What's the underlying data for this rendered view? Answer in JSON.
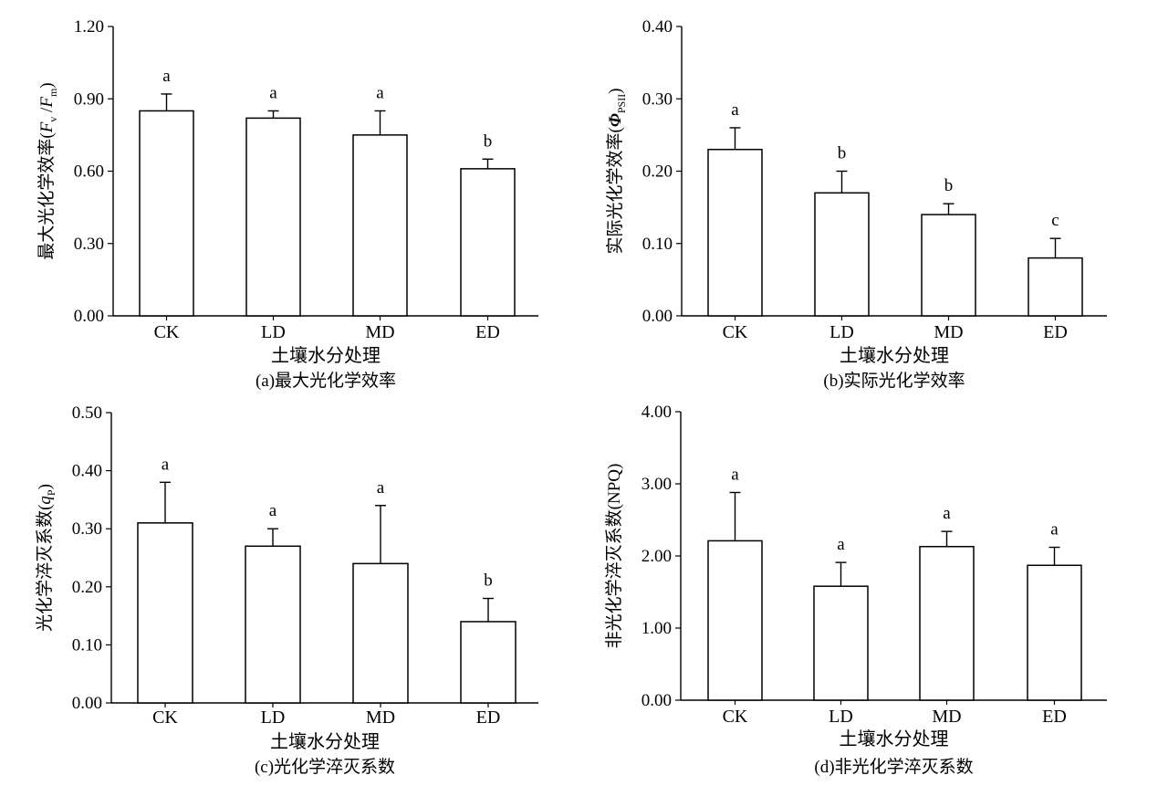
{
  "chart_data": [
    {
      "type": "bar",
      "caption": "(a)最大光化学效率",
      "xlabel": "土壤水分处理",
      "ylabel_parts": [
        {
          "t": "最大光化学效率(",
          "s": "n"
        },
        {
          "t": "F",
          "s": "i"
        },
        {
          "t": "v",
          "s": "sub"
        },
        {
          "t": " /",
          "s": "n"
        },
        {
          "t": "F",
          "s": "i"
        },
        {
          "t": "m",
          "s": "sub"
        },
        {
          "t": ")",
          "s": "n"
        }
      ],
      "categories": [
        "CK",
        "LD",
        "MD",
        "ED"
      ],
      "values": [
        0.85,
        0.82,
        0.75,
        0.61
      ],
      "errors": [
        0.07,
        0.03,
        0.1,
        0.04
      ],
      "significance": [
        "a",
        "a",
        "a",
        "b"
      ],
      "ylim": [
        0,
        1.2
      ],
      "yticks": [
        "0.00",
        "0.30",
        "0.60",
        "0.90",
        "1.20"
      ]
    },
    {
      "type": "bar",
      "caption": "(b)实际光化学效率",
      "xlabel": "土壤水分处理",
      "ylabel_parts": [
        {
          "t": "实际光化学效率(",
          "s": "n"
        },
        {
          "t": "Φ",
          "s": "bi"
        },
        {
          "t": "PSII",
          "s": "sub"
        },
        {
          "t": ")",
          "s": "n"
        }
      ],
      "categories": [
        "CK",
        "LD",
        "MD",
        "ED"
      ],
      "values": [
        0.23,
        0.17,
        0.14,
        0.08
      ],
      "errors": [
        0.03,
        0.03,
        0.015,
        0.027
      ],
      "significance": [
        "a",
        "b",
        "b",
        "c"
      ],
      "ylim": [
        0,
        0.4
      ],
      "yticks": [
        "0.00",
        "0.10",
        "0.20",
        "0.30",
        "0.40"
      ]
    },
    {
      "type": "bar",
      "caption": "(c)光化学淬灭系数",
      "xlabel": "土壤水分处理",
      "ylabel_parts": [
        {
          "t": "光化学淬灭系数(",
          "s": "n"
        },
        {
          "t": "q",
          "s": "i"
        },
        {
          "t": "P",
          "s": "sub"
        },
        {
          "t": ")",
          "s": "n"
        }
      ],
      "categories": [
        "CK",
        "LD",
        "MD",
        "ED"
      ],
      "values": [
        0.31,
        0.27,
        0.24,
        0.14
      ],
      "errors": [
        0.07,
        0.03,
        0.1,
        0.04
      ],
      "significance": [
        "a",
        "a",
        "a",
        "b"
      ],
      "ylim": [
        0,
        0.5
      ],
      "yticks": [
        "0.00",
        "0.10",
        "0.20",
        "0.30",
        "0.40",
        "0.50"
      ]
    },
    {
      "type": "bar",
      "caption": "(d)非光化学淬灭系数",
      "xlabel": "土壤水分处理",
      "ylabel_parts": [
        {
          "t": "非光化学淬灭系数(NPQ)",
          "s": "n"
        }
      ],
      "categories": [
        "CK",
        "LD",
        "MD",
        "ED"
      ],
      "values": [
        2.21,
        1.58,
        2.13,
        1.87
      ],
      "errors": [
        0.67,
        0.33,
        0.21,
        0.25
      ],
      "significance": [
        "a",
        "a",
        "a",
        "a"
      ],
      "ylim": [
        0,
        4
      ],
      "yticks": [
        "0.00",
        "1.00",
        "2.00",
        "3.00",
        "4.00"
      ]
    }
  ]
}
